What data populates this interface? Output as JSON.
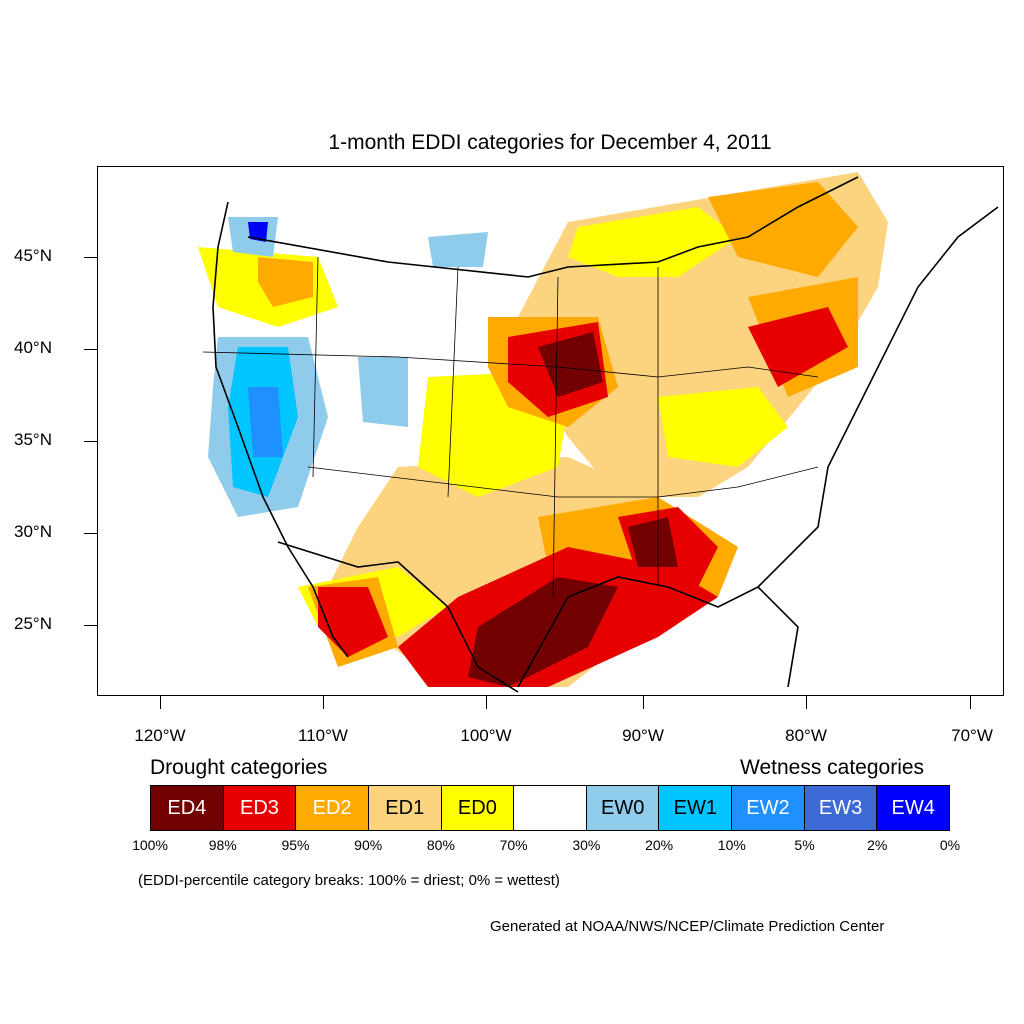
{
  "title": "1-month EDDI categories for December 4, 2011",
  "axes": {
    "lat_labels": [
      "45°N",
      "40°N",
      "35°N",
      "30°N",
      "25°N"
    ],
    "lon_labels": [
      "120°W",
      "110°W",
      "100°W",
      "90°W",
      "80°W",
      "70°W"
    ]
  },
  "legend": {
    "drought_heading": "Drought categories",
    "wetness_heading": "Wetness categories",
    "categories": [
      {
        "label": "ED4",
        "color": "#730000",
        "text_color": "#ffffff"
      },
      {
        "label": "ED3",
        "color": "#e60000",
        "text_color": "#ffffff"
      },
      {
        "label": "ED2",
        "color": "#ffaa00",
        "text_color": "#ffffff"
      },
      {
        "label": "ED1",
        "color": "#fcd37f",
        "text_color": "#000000"
      },
      {
        "label": "ED0",
        "color": "#ffff00",
        "text_color": "#000000"
      },
      {
        "label": "",
        "color": "#ffffff",
        "text_color": "#000000"
      },
      {
        "label": "EW0",
        "color": "#8fcbeb",
        "text_color": "#000000"
      },
      {
        "label": "EW1",
        "color": "#00c5ff",
        "text_color": "#000000"
      },
      {
        "label": "EW2",
        "color": "#1e90ff",
        "text_color": "#ffffff"
      },
      {
        "label": "EW3",
        "color": "#3d6ad6",
        "text_color": "#ffffff"
      },
      {
        "label": "EW4",
        "color": "#0000ff",
        "text_color": "#ffffff"
      }
    ],
    "percentiles": [
      "100%",
      "98%",
      "95%",
      "90%",
      "80%",
      "70%",
      "30%",
      "20%",
      "10%",
      "5%",
      "2%",
      "0%"
    ]
  },
  "note": "(EDDI-percentile category breaks: 100% = driest; 0% = wettest)",
  "credit": "Generated at NOAA/NWS/NCEP/Climate Prediction Center"
}
